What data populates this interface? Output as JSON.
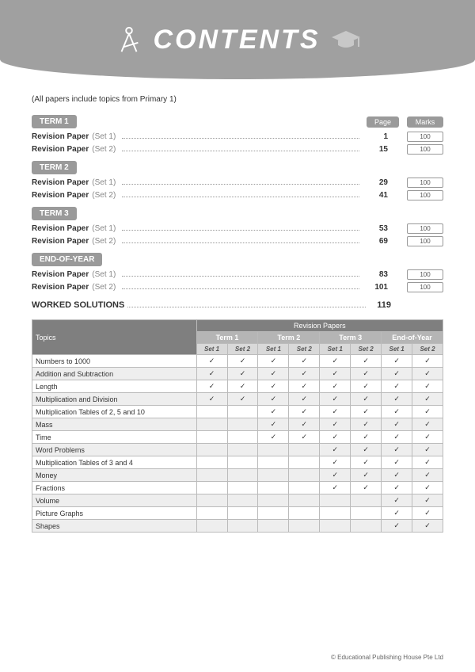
{
  "banner": {
    "title": "CONTENTS"
  },
  "note": "(All papers include topics from Primary 1)",
  "column_heads": {
    "page": "Page",
    "marks": "Marks"
  },
  "terms": [
    {
      "label": "TERM 1",
      "papers": [
        {
          "label": "Revision Paper",
          "set": "(Set 1)",
          "page": "1",
          "marks": "100"
        },
        {
          "label": "Revision Paper",
          "set": "(Set 2)",
          "page": "15",
          "marks": "100"
        }
      ]
    },
    {
      "label": "TERM 2",
      "papers": [
        {
          "label": "Revision Paper",
          "set": "(Set 1)",
          "page": "29",
          "marks": "100"
        },
        {
          "label": "Revision Paper",
          "set": "(Set 2)",
          "page": "41",
          "marks": "100"
        }
      ]
    },
    {
      "label": "TERM 3",
      "papers": [
        {
          "label": "Revision Paper",
          "set": "(Set 1)",
          "page": "53",
          "marks": "100"
        },
        {
          "label": "Revision Paper",
          "set": "(Set 2)",
          "page": "69",
          "marks": "100"
        }
      ]
    },
    {
      "label": "END-OF-YEAR",
      "papers": [
        {
          "label": "Revision Paper",
          "set": "(Set 1)",
          "page": "83",
          "marks": "100"
        },
        {
          "label": "Revision Paper",
          "set": "(Set 2)",
          "page": "101",
          "marks": "100"
        }
      ]
    }
  ],
  "worked": {
    "label": "WORKED SOLUTIONS",
    "page": "119"
  },
  "topics_table": {
    "header_main": "Revision Papers",
    "header_topics": "Topics",
    "terms": [
      "Term 1",
      "Term 2",
      "Term 3",
      "End-of-Year"
    ],
    "sets": [
      "Set 1",
      "Set 2"
    ],
    "rows": [
      {
        "topic": "Numbers to 1000",
        "ticks": [
          1,
          1,
          1,
          1,
          1,
          1,
          1,
          1
        ]
      },
      {
        "topic": "Addition and Subtraction",
        "ticks": [
          1,
          1,
          1,
          1,
          1,
          1,
          1,
          1
        ]
      },
      {
        "topic": "Length",
        "ticks": [
          1,
          1,
          1,
          1,
          1,
          1,
          1,
          1
        ]
      },
      {
        "topic": "Multiplication and Division",
        "ticks": [
          1,
          1,
          1,
          1,
          1,
          1,
          1,
          1
        ]
      },
      {
        "topic": "Multiplication Tables of 2, 5 and 10",
        "ticks": [
          0,
          0,
          1,
          1,
          1,
          1,
          1,
          1
        ]
      },
      {
        "topic": "Mass",
        "ticks": [
          0,
          0,
          1,
          1,
          1,
          1,
          1,
          1
        ]
      },
      {
        "topic": "Time",
        "ticks": [
          0,
          0,
          1,
          1,
          1,
          1,
          1,
          1
        ]
      },
      {
        "topic": "Word Problems",
        "ticks": [
          0,
          0,
          0,
          0,
          1,
          1,
          1,
          1
        ]
      },
      {
        "topic": "Multiplication Tables of 3 and 4",
        "ticks": [
          0,
          0,
          0,
          0,
          1,
          1,
          1,
          1
        ]
      },
      {
        "topic": "Money",
        "ticks": [
          0,
          0,
          0,
          0,
          1,
          1,
          1,
          1
        ]
      },
      {
        "topic": "Fractions",
        "ticks": [
          0,
          0,
          0,
          0,
          1,
          1,
          1,
          1
        ]
      },
      {
        "topic": "Volume",
        "ticks": [
          0,
          0,
          0,
          0,
          0,
          0,
          1,
          1
        ]
      },
      {
        "topic": "Picture Graphs",
        "ticks": [
          0,
          0,
          0,
          0,
          0,
          0,
          1,
          1
        ]
      },
      {
        "topic": "Shapes",
        "ticks": [
          0,
          0,
          0,
          0,
          0,
          0,
          1,
          1
        ]
      }
    ]
  },
  "copyright": "© Educational Publishing House Pte Ltd",
  "colors": {
    "gray": "#9a9a9a",
    "darkgray": "#7f7f7f",
    "lightgray": "#d9d9d9",
    "rowalt": "#eeeeee"
  }
}
